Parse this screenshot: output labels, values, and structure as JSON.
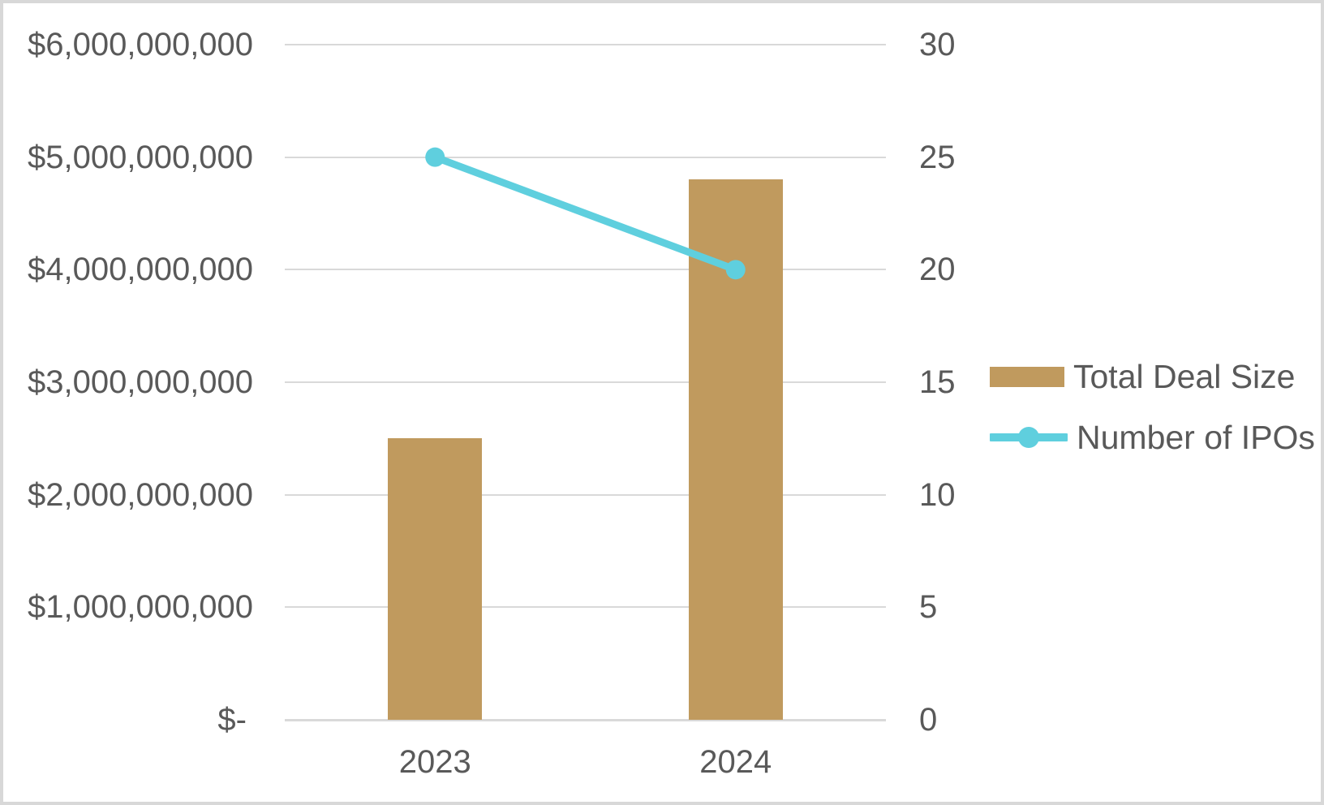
{
  "window": {
    "background_color": "#ffffff",
    "border_color": "#d8d8d8"
  },
  "chart_data": {
    "type": "combo-bar-line",
    "title": "",
    "categories": [
      "2023",
      "2024"
    ],
    "series": [
      {
        "name": "Total Deal Size",
        "type": "bar",
        "axis": "left",
        "color": "#c09a5e",
        "values": [
          2500000000,
          4800000000
        ]
      },
      {
        "name": "Number of IPOs",
        "type": "line",
        "axis": "right",
        "color": "#5fcfde",
        "values": [
          25,
          20
        ]
      }
    ],
    "left_axis": {
      "min": 0,
      "max": 6000000000,
      "tick_step": 1000000000,
      "tick_labels_top_to_bottom": [
        "$6,000,000,000",
        "$5,000,000,000",
        "$4,000,000,000",
        "$3,000,000,000",
        "$2,000,000,000",
        "$1,000,000,000",
        "$-"
      ]
    },
    "right_axis": {
      "min": 0,
      "max": 30,
      "tick_step": 5,
      "tick_labels_top_to_bottom": [
        "30",
        "25",
        "20",
        "15",
        "10",
        "5",
        "0"
      ]
    },
    "grid": true,
    "gridline_color": "#d9d9d9",
    "text_color": "#595959",
    "legend_position": "right",
    "legend_labels": [
      "Total Deal Size",
      "Number of IPOs"
    ]
  }
}
